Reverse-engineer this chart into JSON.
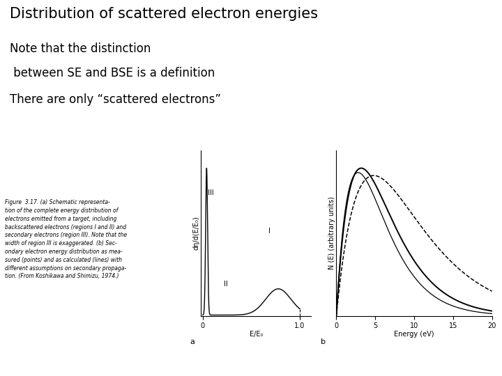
{
  "title": "Distribution of scattered electron energies",
  "subtitle_lines": [
    "Note that the distinction",
    " between SE and BSE is a definition",
    "There are only “scattered electrons”"
  ],
  "fig_caption": "Figure  3.17. (a) Schematic representa-\ntion of the complete energy distribution of\nelectrons emitted from a target, including\nbackscattered electrons (regions I and II) and\nsecondary electrons (region III). Note that the\nwidth of region III is exaggerated. (b) Sec-\nondary electron energy distribution as mea-\nsured (points) and as calculated (lines) with\ndifferent assumptions on secondary propaga-\ntion. (From Koshikawa and Shimizu, 1974.)",
  "plot_a_xlabel": "E/E₀",
  "plot_a_ylabel": "dη/d(E/E₀)",
  "plot_a_label_a": "a",
  "plot_a_label_III": "III",
  "plot_a_label_II": "II",
  "plot_a_label_I": "I",
  "plot_b_xlabel": "Energy (eV)",
  "plot_b_ylabel": "N (E) (arbitrary units)",
  "plot_b_label_b": "b",
  "background_color": "#ffffff",
  "text_color": "#000000",
  "title_fontsize": 15,
  "subtitle_fontsize": 12,
  "caption_fontsize": 5.5,
  "axis_label_fontsize": 7,
  "tick_fontsize": 7,
  "region_label_fontsize": 7
}
